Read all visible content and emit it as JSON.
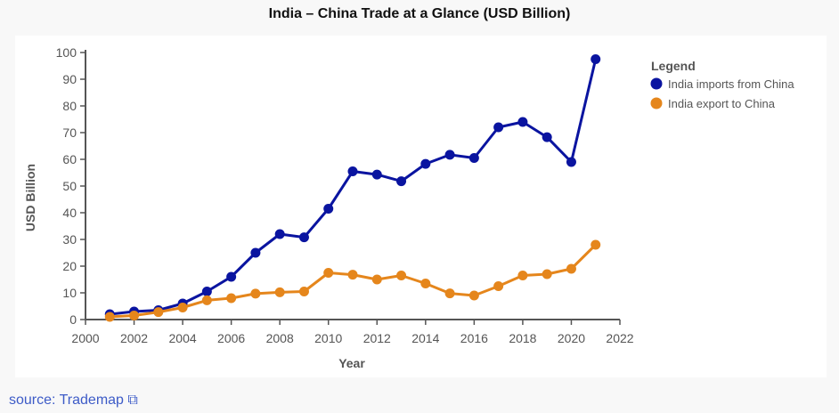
{
  "chart_data": {
    "type": "line",
    "title": "India – China Trade at a Glance (USD Billion)",
    "xlabel": "Year",
    "ylabel": "USD Billion",
    "xlim": [
      2000,
      2022
    ],
    "ylim": [
      0,
      100
    ],
    "xticks": [
      2000,
      2002,
      2004,
      2006,
      2008,
      2010,
      2012,
      2014,
      2016,
      2018,
      2020,
      2022
    ],
    "yticks": [
      0,
      10,
      20,
      30,
      40,
      50,
      60,
      70,
      80,
      90,
      100
    ],
    "legend_title": "Legend",
    "legend_position": "top-right",
    "x": [
      2001,
      2002,
      2003,
      2004,
      2005,
      2006,
      2007,
      2008,
      2009,
      2010,
      2011,
      2012,
      2013,
      2014,
      2015,
      2016,
      2017,
      2018,
      2019,
      2020,
      2021
    ],
    "series": [
      {
        "name": "India imports from China",
        "color": "#0a14a0",
        "values": [
          2,
          3,
          3.5,
          6,
          10.5,
          16,
          25,
          32,
          30.8,
          41.5,
          55.5,
          54.3,
          51.8,
          58.3,
          61.7,
          60.5,
          72,
          74,
          68.3,
          59,
          97.5
        ]
      },
      {
        "name": "India export to China",
        "color": "#e5861c",
        "values": [
          1,
          1.5,
          2.8,
          4.5,
          7.2,
          8,
          9.7,
          10.2,
          10.5,
          17.5,
          16.8,
          15,
          16.5,
          13.5,
          9.8,
          9,
          12.5,
          16.5,
          17,
          19,
          28
        ]
      }
    ]
  },
  "source": {
    "prefix": "source: ",
    "link": "Trademap"
  }
}
